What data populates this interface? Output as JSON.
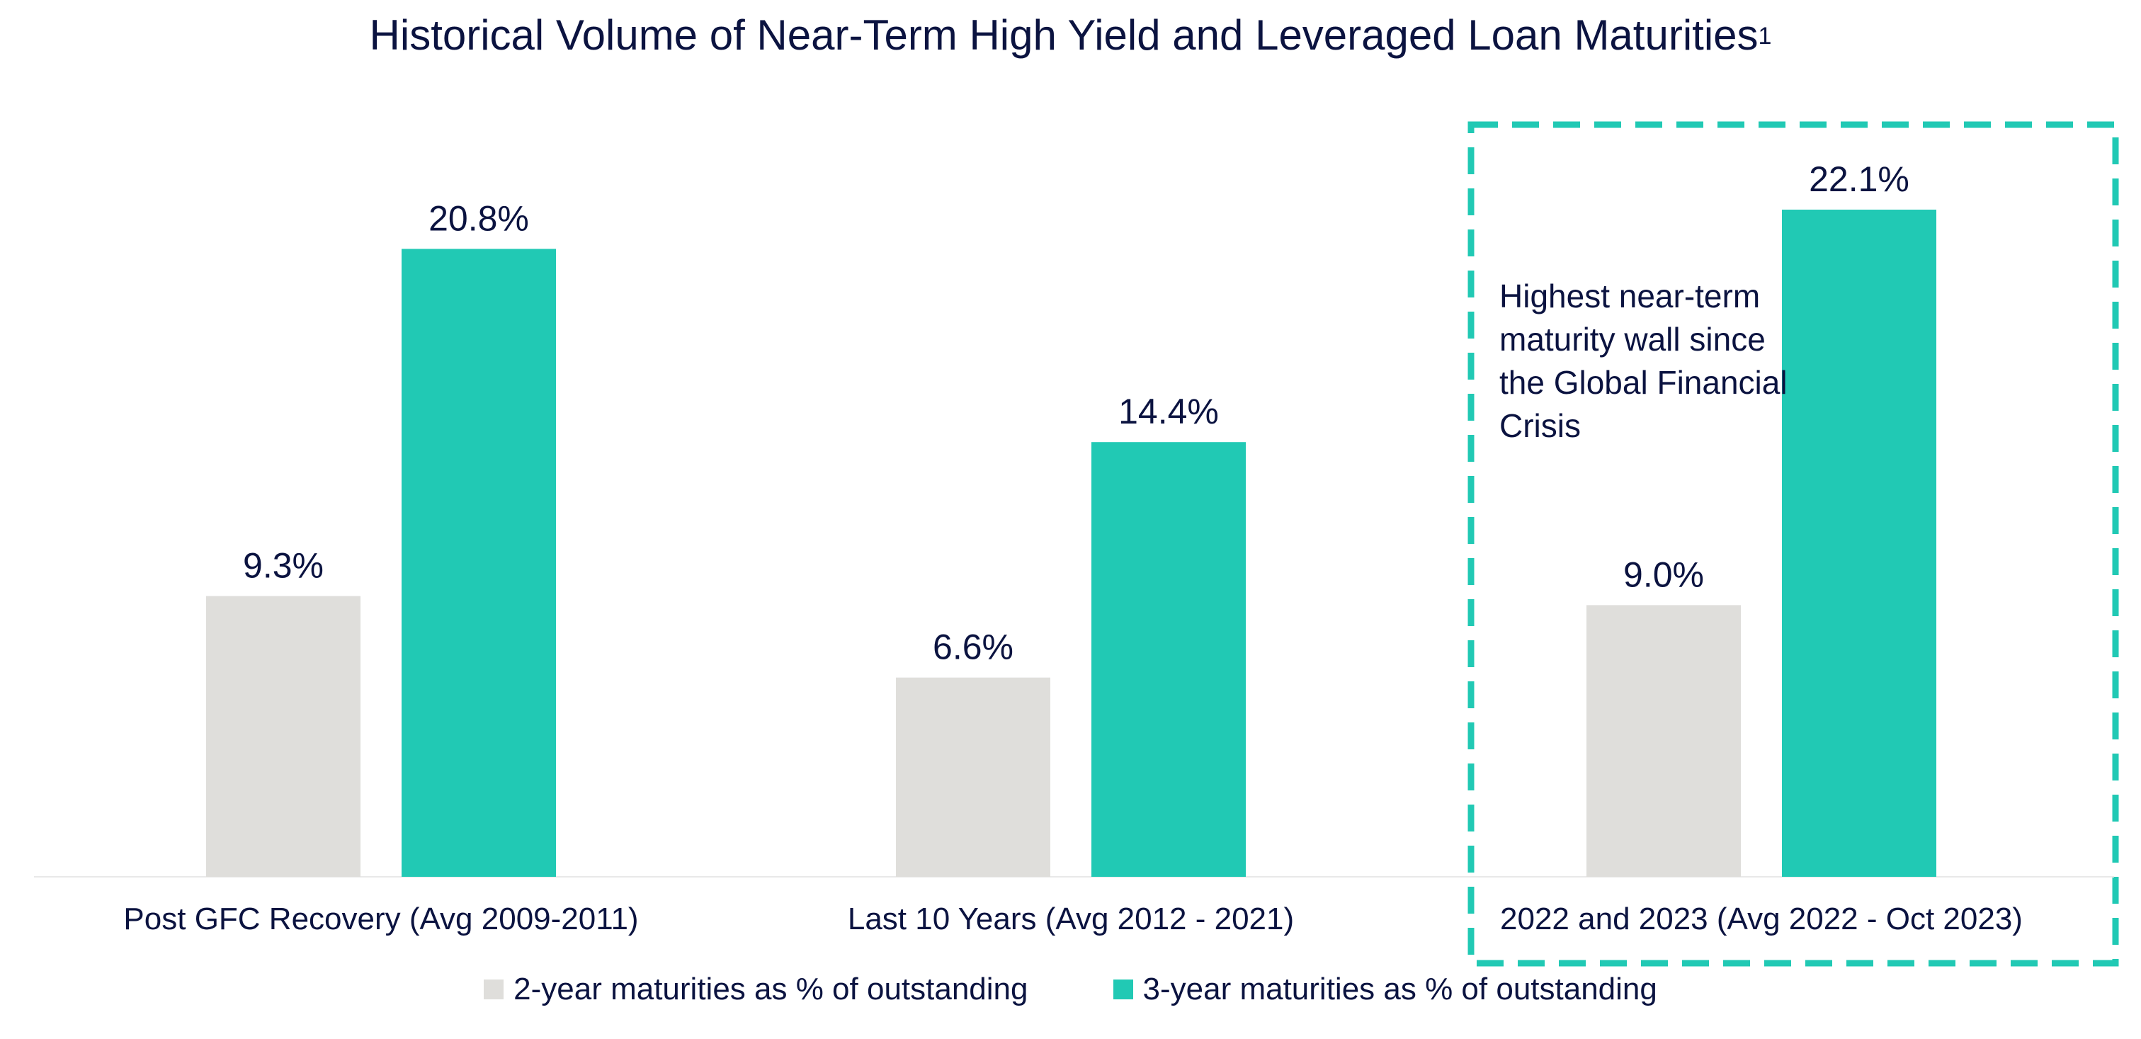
{
  "chart_data": {
    "type": "bar",
    "title": "Historical Volume of Near-Term High Yield and Leveraged Loan Maturities",
    "title_superscript": "1",
    "categories": [
      "Post GFC Recovery (Avg 2009-2011)",
      "Last 10 Years (Avg 2012 - 2021)",
      "2022 and 2023 (Avg 2022 - Oct 2023)"
    ],
    "series": [
      {
        "name": "2-year maturities as % of outstanding",
        "values": [
          9.3,
          6.6,
          9.0
        ],
        "labels": [
          "9.3%",
          "6.6%",
          "9.0%"
        ],
        "color": "#dfdedb"
      },
      {
        "name": "3-year maturities as % of outstanding",
        "values": [
          20.8,
          14.4,
          22.1
        ],
        "labels": [
          "20.8%",
          "14.4%",
          "22.1%"
        ],
        "color": "#21c9b4"
      }
    ],
    "xlabel": "",
    "ylabel": "",
    "ylim": [
      0,
      22.1
    ],
    "grid": false,
    "legend_position": "bottom",
    "annotation": {
      "text": "Highest near-term maturity wall since the Global Financial Crisis",
      "highlight_category": "2022 and 2023 (Avg 2022 - Oct 2023)",
      "highlight_color": "#21c9b4"
    },
    "text_color": "#0b1340",
    "axis_color": "#e9e9e9"
  }
}
